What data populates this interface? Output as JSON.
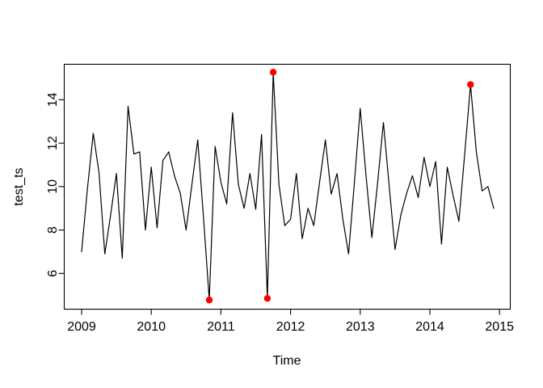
{
  "figure": {
    "background_color": "#ffffff",
    "series_color": "#000000",
    "outlier_color": "#ff0000"
  },
  "chart_data": {
    "type": "line",
    "title": "",
    "xlabel": "Time",
    "ylabel": "test_ts",
    "grid": false,
    "legend": null,
    "x_ticks": [
      2009,
      2010,
      2011,
      2012,
      2013,
      2014,
      2015
    ],
    "y_ticks": [
      6,
      8,
      10,
      12,
      14
    ],
    "xlim": [
      2008.76,
      2015.15
    ],
    "ylim": [
      4.36,
      15.69
    ],
    "series_start": "2009-01",
    "frequency": 12,
    "series": [
      {
        "name": "test_ts",
        "values": [
          7.0,
          9.9,
          12.45,
          10.65,
          6.9,
          8.7,
          10.6,
          6.7,
          13.7,
          11.5,
          11.6,
          8.0,
          10.9,
          8.1,
          11.2,
          11.6,
          10.5,
          9.7,
          8.0,
          10.1,
          12.15,
          8.6,
          4.78,
          11.85,
          10.2,
          9.2,
          13.4,
          10.1,
          9.0,
          10.6,
          8.95,
          12.4,
          4.85,
          15.27,
          10.1,
          8.2,
          8.5,
          10.6,
          7.6,
          9.0,
          8.2,
          10.2,
          12.15,
          9.65,
          10.6,
          8.5,
          6.9,
          10.2,
          13.6,
          10.5,
          7.65,
          10.2,
          12.95,
          10.0,
          7.1,
          8.7,
          9.7,
          10.5,
          9.5,
          11.35,
          10.0,
          11.15,
          7.35,
          10.9,
          9.6,
          8.4,
          11.5,
          14.7,
          11.6,
          9.8,
          10.0,
          9.0
        ]
      }
    ],
    "outlier_points": [
      {
        "month": "2010-11",
        "index": 22,
        "value": 4.78
      },
      {
        "month": "2011-09",
        "index": 32,
        "value": 4.85
      },
      {
        "month": "2011-10",
        "index": 33,
        "value": 15.27
      },
      {
        "month": "2014-08",
        "index": 67,
        "value": 14.7
      }
    ]
  }
}
